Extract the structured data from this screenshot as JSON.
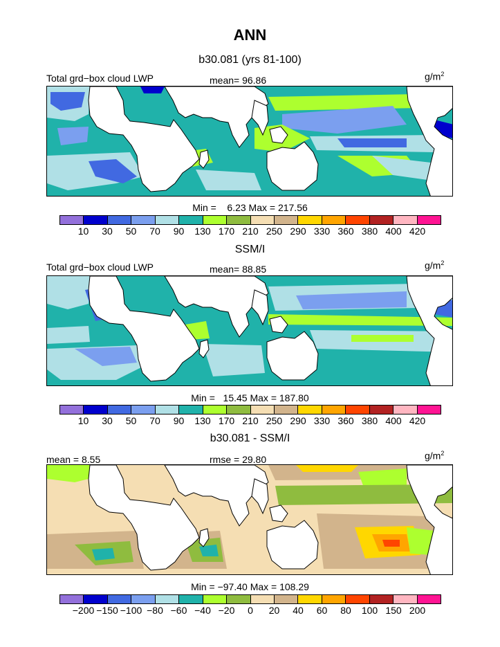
{
  "title": "ANN",
  "palette": {
    "ocean": "#20b2aa",
    "land": "#ffffff",
    "abs": [
      "#9370db",
      "#0000cd",
      "#4169e1",
      "#7b9fef",
      "#b0e0e6",
      "#20b2aa",
      "#adff2f",
      "#8fbc3f",
      "#f5deb3",
      "#d2b48c",
      "#ffd700",
      "#ffa500",
      "#ff4500",
      "#b22222",
      "#ffb6c1",
      "#ff1493"
    ],
    "diff": [
      "#9370db",
      "#0000cd",
      "#4169e1",
      "#7b9fef",
      "#b0e0e6",
      "#20b2aa",
      "#adff2f",
      "#8fbc3f",
      "#f5deb3",
      "#d2b48c",
      "#ffd700",
      "#ffa500",
      "#ff4500",
      "#b22222",
      "#ffb6c1",
      "#ff1493"
    ]
  },
  "panels": [
    {
      "subtitle": "b30.081 (yrs 81-100)",
      "left_label": "Total grd−box cloud LWP",
      "center_label": "mean=  96.86",
      "units_base": "g/m",
      "units_exp": "2",
      "minmax": "Min =    6.23 Max = 217.56",
      "cb_labels": [
        "10",
        "30",
        "50",
        "70",
        "90",
        "130",
        "170",
        "210",
        "250",
        "290",
        "330",
        "360",
        "380",
        "400",
        "420"
      ],
      "kind": "model"
    },
    {
      "subtitle": "SSM/I",
      "left_label": "Total grd−box cloud LWP",
      "center_label": "mean=  88.85",
      "units_base": "g/m",
      "units_exp": "2",
      "minmax": "Min =   15.45 Max = 187.80",
      "cb_labels": [
        "10",
        "30",
        "50",
        "70",
        "90",
        "130",
        "170",
        "210",
        "250",
        "290",
        "330",
        "360",
        "380",
        "400",
        "420"
      ],
      "kind": "obs"
    },
    {
      "subtitle": "b30.081 - SSM/I",
      "left_label": "mean =    8.55",
      "center_label": "rmse =  29.80",
      "units_base": "g/m",
      "units_exp": "2",
      "minmax": "Min = −97.40 Max = 108.29",
      "cb_labels": [
        "−200",
        "−150",
        "−100",
        "−80",
        "−60",
        "−40",
        "−20",
        "0",
        "20",
        "40",
        "60",
        "80",
        "100",
        "150",
        "200"
      ],
      "kind": "diff"
    }
  ]
}
